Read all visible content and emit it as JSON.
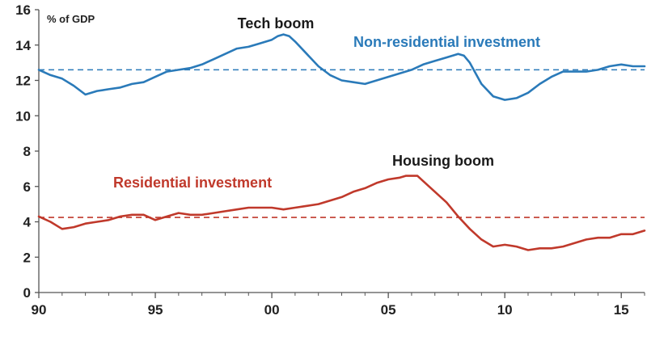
{
  "chart_data": {
    "type": "line",
    "ylabel": "% of GDP",
    "ylim": [
      0,
      16
    ],
    "yticks": [
      "0",
      "2",
      "4",
      "6",
      "8",
      "10",
      "12",
      "14",
      "16"
    ],
    "xlim": [
      1990,
      2016
    ],
    "xticks": [
      {
        "value": 1990,
        "label": "90"
      },
      {
        "value": 1995,
        "label": "95"
      },
      {
        "value": 2000,
        "label": "00"
      },
      {
        "value": 2005,
        "label": "05"
      },
      {
        "value": 2010,
        "label": "10"
      },
      {
        "value": 2015,
        "label": "15"
      }
    ],
    "grid": false,
    "series": [
      {
        "name": "Non-residential investment",
        "color": "#2a7ab9",
        "x": [
          1990.0,
          1990.5,
          1991.0,
          1991.5,
          1992.0,
          1992.5,
          1993.0,
          1993.5,
          1994.0,
          1994.5,
          1995.0,
          1995.5,
          1996.0,
          1996.5,
          1997.0,
          1997.5,
          1998.0,
          1998.5,
          1999.0,
          1999.5,
          2000.0,
          2000.25,
          2000.5,
          2000.75,
          2001.0,
          2001.5,
          2002.0,
          2002.5,
          2003.0,
          2003.5,
          2004.0,
          2004.5,
          2005.0,
          2005.5,
          2006.0,
          2006.5,
          2007.0,
          2007.5,
          2008.0,
          2008.25,
          2008.5,
          2009.0,
          2009.5,
          2010.0,
          2010.5,
          2011.0,
          2011.5,
          2012.0,
          2012.5,
          2013.0,
          2013.5,
          2014.0,
          2014.5,
          2015.0,
          2015.5,
          2016.0
        ],
        "values": [
          12.6,
          12.3,
          12.1,
          11.7,
          11.2,
          11.4,
          11.5,
          11.6,
          11.8,
          11.9,
          12.2,
          12.5,
          12.6,
          12.7,
          12.9,
          13.2,
          13.5,
          13.8,
          13.9,
          14.1,
          14.3,
          14.5,
          14.6,
          14.5,
          14.2,
          13.5,
          12.8,
          12.3,
          12.0,
          11.9,
          11.8,
          12.0,
          12.2,
          12.4,
          12.6,
          12.9,
          13.1,
          13.3,
          13.5,
          13.4,
          13.0,
          11.8,
          11.1,
          10.9,
          11.0,
          11.3,
          11.8,
          12.2,
          12.5,
          12.5,
          12.5,
          12.6,
          12.8,
          12.9,
          12.8,
          12.8
        ],
        "average": 12.6,
        "label": "Non-residential investment",
        "annotation": "Tech boom",
        "annotation_x": 2000.5
      },
      {
        "name": "Residential investment",
        "color": "#c0392b",
        "x": [
          1990.0,
          1990.5,
          1991.0,
          1991.5,
          1992.0,
          1992.5,
          1993.0,
          1993.5,
          1994.0,
          1994.5,
          1995.0,
          1995.5,
          1996.0,
          1996.5,
          1997.0,
          1997.5,
          1998.0,
          1998.5,
          1999.0,
          1999.5,
          2000.0,
          2000.5,
          2001.0,
          2001.5,
          2002.0,
          2002.5,
          2003.0,
          2003.5,
          2004.0,
          2004.5,
          2005.0,
          2005.5,
          2005.75,
          2006.0,
          2006.25,
          2006.5,
          2007.0,
          2007.5,
          2008.0,
          2008.5,
          2009.0,
          2009.5,
          2010.0,
          2010.5,
          2011.0,
          2011.5,
          2012.0,
          2012.5,
          2013.0,
          2013.5,
          2014.0,
          2014.5,
          2015.0,
          2015.5,
          2016.0
        ],
        "values": [
          4.3,
          4.0,
          3.6,
          3.7,
          3.9,
          4.0,
          4.1,
          4.3,
          4.4,
          4.4,
          4.1,
          4.3,
          4.5,
          4.4,
          4.4,
          4.5,
          4.6,
          4.7,
          4.8,
          4.8,
          4.8,
          4.7,
          4.8,
          4.9,
          5.0,
          5.2,
          5.4,
          5.7,
          5.9,
          6.2,
          6.4,
          6.5,
          6.6,
          6.6,
          6.6,
          6.3,
          5.7,
          5.1,
          4.3,
          3.6,
          3.0,
          2.6,
          2.7,
          2.6,
          2.4,
          2.5,
          2.5,
          2.6,
          2.8,
          3.0,
          3.1,
          3.1,
          3.3,
          3.3,
          3.5
        ],
        "average": 4.25,
        "label": "Residential investment",
        "annotation": "Housing boom",
        "annotation_x": 2006.0
      }
    ]
  }
}
